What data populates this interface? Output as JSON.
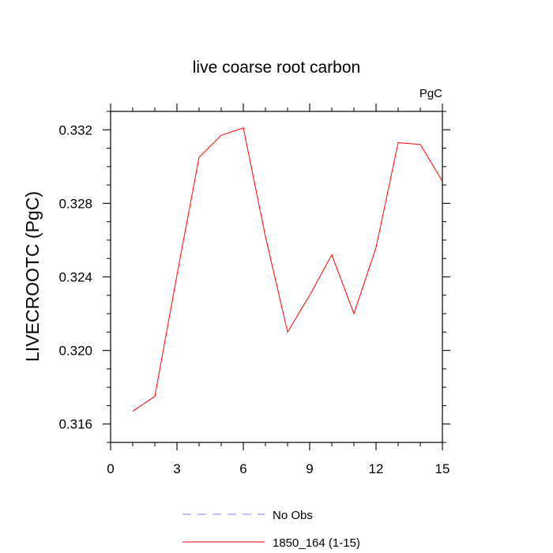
{
  "chart_data": {
    "type": "line",
    "title": "live coarse root carbon",
    "units_label": "PgC",
    "xlabel": "",
    "ylabel": "LIVECROOTC  (PgC)",
    "xlim": [
      0,
      15
    ],
    "ylim": [
      0.315,
      0.333
    ],
    "xticks": [
      0,
      3,
      6,
      9,
      12,
      15
    ],
    "xtick_labels": [
      "0",
      "3",
      "6",
      "9",
      "12",
      "15"
    ],
    "yticks": [
      0.316,
      0.32,
      0.324,
      0.328,
      0.332
    ],
    "ytick_labels": [
      "0.316",
      "0.320",
      "0.324",
      "0.328",
      "0.332"
    ],
    "grid": false,
    "legend_position": "bottom",
    "series": [
      {
        "name": "No Obs",
        "color": "#7a7aff",
        "dash": "dashed",
        "x": [],
        "y": []
      },
      {
        "name": "1850_164 (1-15)",
        "color": "#ff0000",
        "dash": "solid",
        "x": [
          1,
          2,
          3,
          4,
          5,
          6,
          7,
          8,
          9,
          10,
          11,
          12,
          13,
          14,
          15
        ],
        "y": [
          0.3167,
          0.3175,
          0.3241,
          0.3305,
          0.3317,
          0.3321,
          0.3262,
          0.321,
          0.323,
          0.3252,
          0.322,
          0.3256,
          0.3313,
          0.3312,
          0.3292
        ]
      }
    ]
  }
}
